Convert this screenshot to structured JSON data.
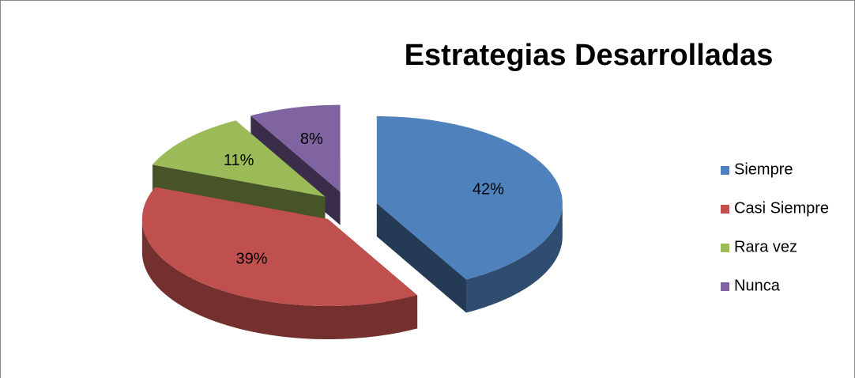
{
  "chart_data": {
    "type": "pie",
    "title": "Estrategias Desarrolladas",
    "categories": [
      "Siempre",
      "Casi Siempre",
      "Rara vez",
      "Nunca"
    ],
    "values": [
      42,
      39,
      11,
      8
    ],
    "value_labels": [
      "42%",
      "39%",
      "11%",
      "8%"
    ],
    "colors": [
      "#4f81bd",
      "#c0504d",
      "#9bbb59",
      "#8064a2"
    ],
    "legend": "right"
  }
}
